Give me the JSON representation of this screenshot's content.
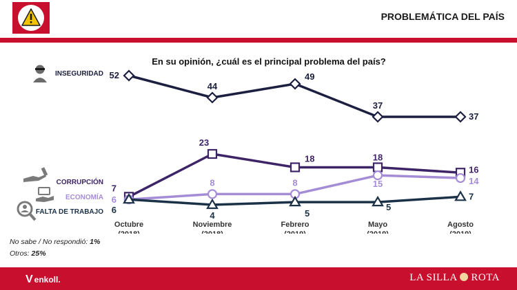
{
  "header": {
    "title": "PROBLEMÁTICA DEL PAÍS",
    "warning_icon": "warning-triangle-icon"
  },
  "question": "En su opinión, ¿cuál es el principal problema del país?",
  "notes": {
    "line1": "No sabe / No respondió: ",
    "line1_value": "1%",
    "line2": "Otros: ",
    "line2_value": "25%"
  },
  "footer": {
    "brand_left": "enkoll.",
    "brand_left_mark": "V",
    "brand_right_a": "LA SILLA",
    "brand_right_b": "ROTA",
    "color": "#c8102e"
  },
  "chart_data": {
    "type": "line",
    "categories": [
      "Octubre\n(2018)",
      "Noviembre\n(2018)",
      "Febrero\n(2019)",
      "Mayo\n(2019)",
      "Agosto\n(2019)"
    ],
    "ylim": [
      0,
      55
    ],
    "grid": false,
    "series": [
      {
        "name": "INSEGURIDAD",
        "values": [
          52,
          44,
          49,
          37,
          37
        ],
        "color": "#1c1f3f",
        "marker": "diamond",
        "icon": "thief-icon"
      },
      {
        "name": "CORRUPCIÓN",
        "values": [
          7,
          23,
          18,
          18,
          16
        ],
        "color": "#3d2466",
        "marker": "square",
        "icon": "bribe-hand-icon"
      },
      {
        "name": "ECONOMÍA",
        "values": [
          6,
          8,
          8,
          15,
          14
        ],
        "color": "#a58cd6",
        "marker": "circle",
        "icon": "money-hand-icon"
      },
      {
        "name": "FALTA DE TRABAJO",
        "values": [
          6,
          4,
          5,
          5,
          7
        ],
        "color": "#1b3148",
        "marker": "triangle",
        "icon": "job-search-icon"
      }
    ]
  }
}
